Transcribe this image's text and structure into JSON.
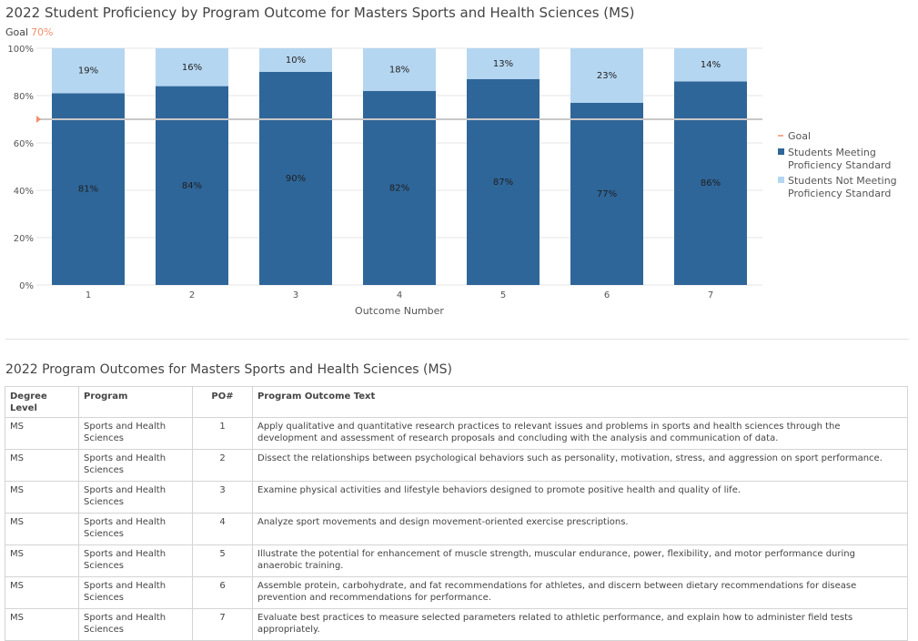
{
  "chart_data": {
    "type": "bar",
    "stacked": true,
    "title": "2022 Student Proficiency by Program Outcome for Masters Sports and Health Sciences (MS)",
    "goal_label": "Goal",
    "goal_value": "70%",
    "goal": 70,
    "categories": [
      "1",
      "2",
      "3",
      "4",
      "5",
      "6",
      "7"
    ],
    "series": [
      {
        "name": "Students Meeting Proficiency Standard",
        "values": [
          81,
          84,
          90,
          82,
          87,
          77,
          86
        ],
        "color": "#2f6699"
      },
      {
        "name": "Students Not Meeting Proficiency Standard",
        "values": [
          19,
          16,
          10,
          18,
          13,
          23,
          14
        ],
        "color": "#b5d6f1"
      }
    ],
    "data_labels": {
      "meeting": [
        "81%",
        "84%",
        "90%",
        "82%",
        "87%",
        "77%",
        "86%"
      ],
      "not_meeting": [
        "19%",
        "16%",
        "10%",
        "18%",
        "13%",
        "23%",
        "14%"
      ]
    },
    "ylim": [
      0,
      100
    ],
    "yticks": [
      "0%",
      "20%",
      "40%",
      "60%",
      "80%",
      "100%"
    ],
    "xlabel": "Outcome Number",
    "ylabel": "",
    "legend": {
      "position": "right",
      "goal": "Goal",
      "meeting_line1": "Students Meeting",
      "meeting_line2": "Proficiency Standard",
      "not_meeting_line1": "Students Not Meeting",
      "not_meeting_line2": "Proficiency Standard"
    },
    "goal_color": "#f28e6c",
    "grid": true
  },
  "table": {
    "title": "2022 Program Outcomes for Masters Sports and Health Sciences (MS)",
    "headers": [
      "Degree Level",
      "Program",
      "PO#",
      "Program Outcome Text"
    ],
    "rows": [
      {
        "degree": "MS",
        "program": "Sports and Health Sciences",
        "po": "1",
        "text": "Apply qualitative and quantitative research practices to relevant issues and problems in sports and health sciences through the development and assessment of research proposals and concluding with the analysis and communication of data."
      },
      {
        "degree": "MS",
        "program": "Sports and Health Sciences",
        "po": "2",
        "text": "Dissect the relationships between psychological behaviors such as personality, motivation, stress, and aggression on sport performance."
      },
      {
        "degree": "MS",
        "program": "Sports and Health Sciences",
        "po": "3",
        "text": "Examine physical activities and lifestyle behaviors designed to promote positive health and quality of life."
      },
      {
        "degree": "MS",
        "program": "Sports and Health Sciences",
        "po": "4",
        "text": "Analyze sport movements and design movement-oriented exercise prescriptions."
      },
      {
        "degree": "MS",
        "program": "Sports and Health Sciences",
        "po": "5",
        "text": "Illustrate the potential for enhancement of muscle strength, muscular endurance, power, flexibility, and motor performance during anaerobic training."
      },
      {
        "degree": "MS",
        "program": "Sports and Health Sciences",
        "po": "6",
        "text": "Assemble protein, carbohydrate, and fat recommendations for athletes, and discern between dietary recommendations for disease prevention and recommendations for performance."
      },
      {
        "degree": "MS",
        "program": "Sports and Health Sciences",
        "po": "7",
        "text": "Evaluate best practices to measure selected parameters related to athletic performance, and explain how to administer field tests appropriately."
      }
    ]
  }
}
